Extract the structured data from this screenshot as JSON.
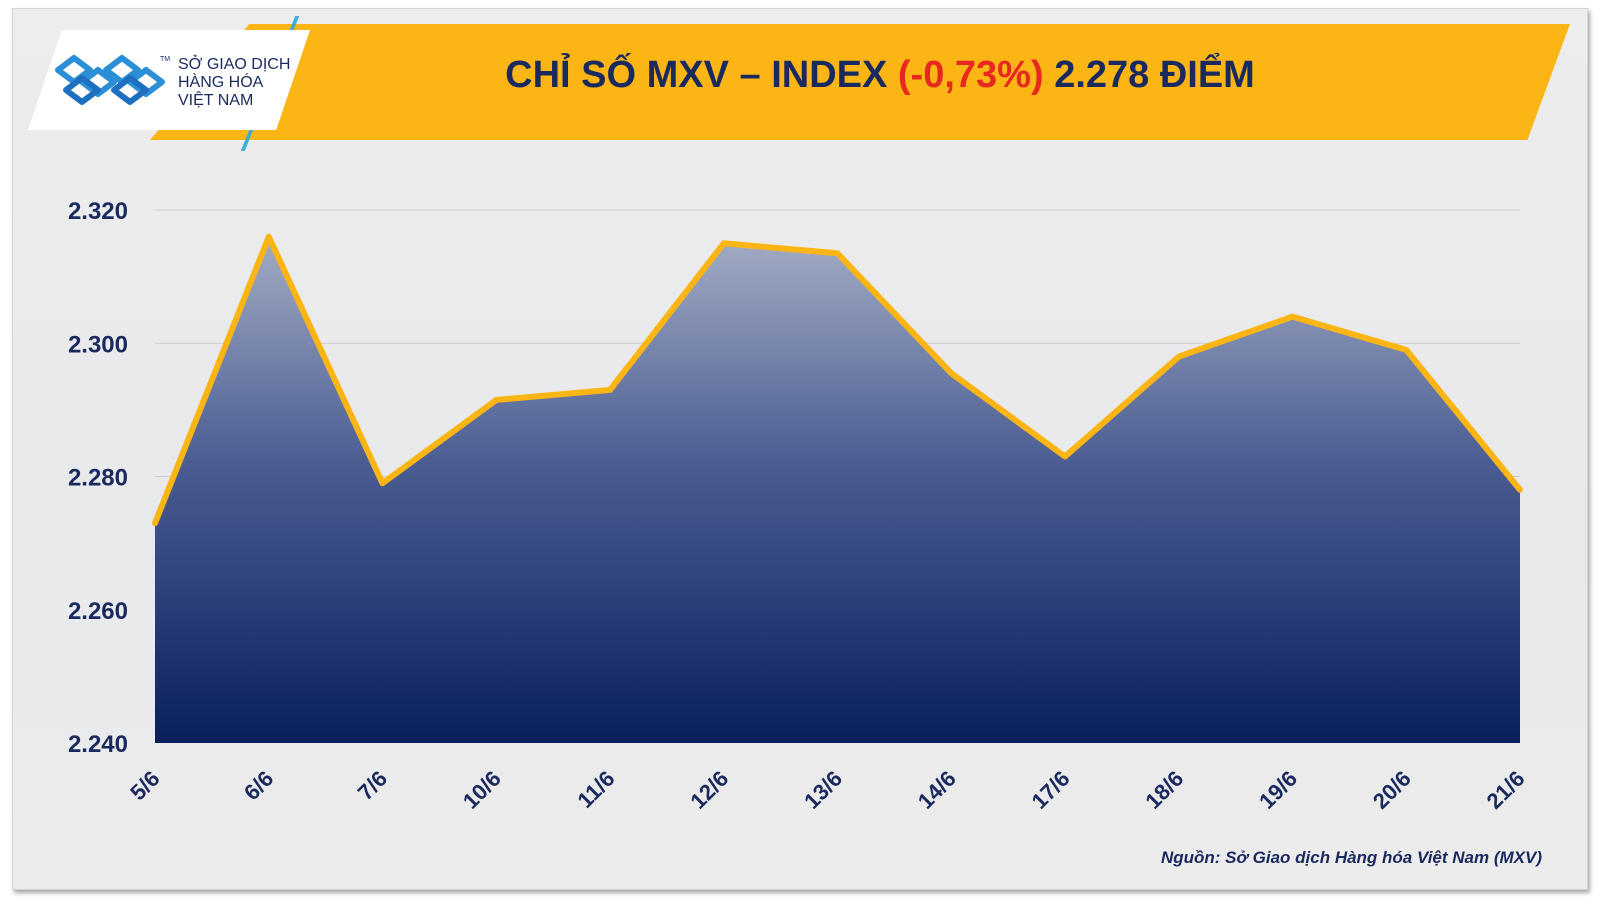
{
  "header": {
    "title_prefix": "CHỈ SỐ MXV – INDEX",
    "title_change": "(-0,73%)",
    "title_suffix": "2.278 ĐIỂM"
  },
  "logo": {
    "line1": "SỞ GIAO DỊCH",
    "line2": "HÀNG HÓA",
    "line3": "VIỆT NAM",
    "tm": "TM"
  },
  "source": "Nguồn: Sở Giao dịch Hàng hóa Việt Nam (MXV)",
  "colors": {
    "line": "#fbb615",
    "area_top": "#a3acc4",
    "area_bottom": "#0a1f5e",
    "text": "#1b2a5e",
    "negative": "#e8271f",
    "banner": "#fbb615"
  },
  "chart_data": {
    "type": "area",
    "title": "CHỈ SỐ MXV – INDEX (-0,73%) 2.278 ĐIỂM",
    "xlabel": "",
    "ylabel": "",
    "categories": [
      "5/6",
      "6/6",
      "7/6",
      "10/6",
      "11/6",
      "12/6",
      "13/6",
      "14/6",
      "17/6",
      "18/6",
      "19/6",
      "20/6",
      "21/6"
    ],
    "values": [
      2273,
      2316,
      2279,
      2291.5,
      2293,
      2315,
      2313.5,
      2295.5,
      2283,
      2298,
      2304,
      2299,
      2278
    ],
    "ylim": [
      2240,
      2320
    ],
    "yticks": [
      2240,
      2260,
      2280,
      2300,
      2320
    ],
    "ytick_labels": [
      "2.240",
      "2.260",
      "2.280",
      "2.300",
      "2.320"
    ],
    "grid": true
  }
}
